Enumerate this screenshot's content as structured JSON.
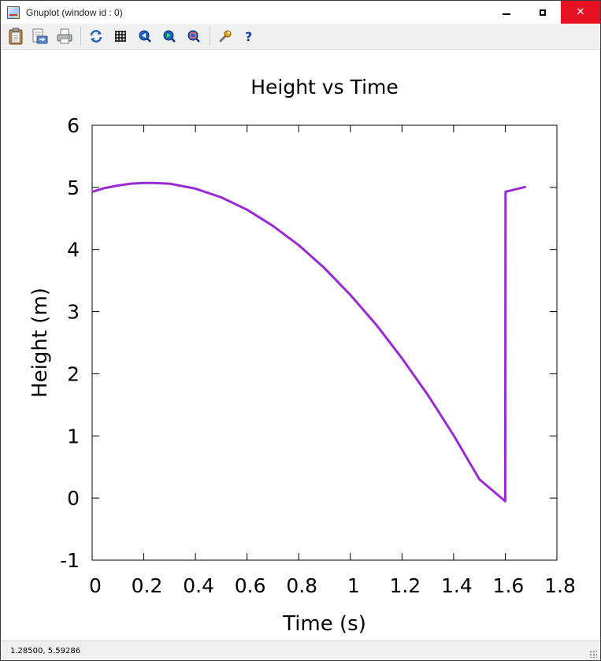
{
  "window": {
    "title": "Gnuplot (window id : 0)",
    "controls": {
      "minimize": "minimize",
      "maximize": "maximize",
      "close": "✕"
    }
  },
  "toolbar": {
    "buttons": [
      {
        "name": "copy-to-clipboard",
        "icon": "clipboard-icon"
      },
      {
        "name": "export",
        "icon": "export-icon"
      },
      {
        "name": "print",
        "icon": "printer-icon"
      },
      {
        "name": "replot",
        "icon": "refresh-icon"
      },
      {
        "name": "toggle-grid",
        "icon": "grid-icon"
      },
      {
        "name": "zoom-previous",
        "icon": "zoom-previous-icon"
      },
      {
        "name": "zoom-next",
        "icon": "zoom-next-icon"
      },
      {
        "name": "autoscale",
        "icon": "autoscale-icon"
      },
      {
        "name": "options",
        "icon": "wrench-icon"
      },
      {
        "name": "help",
        "icon": "help-icon"
      }
    ]
  },
  "status": {
    "coordinates": "1.28500,  5.59286"
  },
  "chart_data": {
    "type": "line",
    "title": "Height vs Time",
    "xlabel": "Time (s)",
    "ylabel": "Height (m)",
    "xlim": [
      0,
      1.8
    ],
    "ylim": [
      -1,
      6
    ],
    "xticks": [
      "0",
      "0.2",
      "0.4",
      "0.6",
      "0.8",
      "1",
      "1.2",
      "1.4",
      "1.6",
      "1.8"
    ],
    "yticks": [
      "-1",
      "0",
      "1",
      "2",
      "3",
      "4",
      "5",
      "6"
    ],
    "grid": false,
    "series": [
      {
        "color": "#9a2ad4",
        "x": [
          0,
          0.05,
          0.1,
          0.15,
          0.2,
          0.235,
          0.3,
          0.4,
          0.5,
          0.6,
          0.7,
          0.8,
          0.9,
          1.0,
          1.1,
          1.2,
          1.3,
          1.4,
          1.5,
          1.6,
          1.601,
          1.68
        ],
        "y": [
          4.93,
          4.99,
          5.03,
          5.06,
          5.07,
          5.07,
          5.06,
          4.98,
          4.84,
          4.64,
          4.38,
          4.07,
          3.7,
          3.27,
          2.79,
          2.25,
          1.66,
          1.01,
          0.3,
          -0.05,
          4.93,
          5.01
        ]
      }
    ]
  }
}
